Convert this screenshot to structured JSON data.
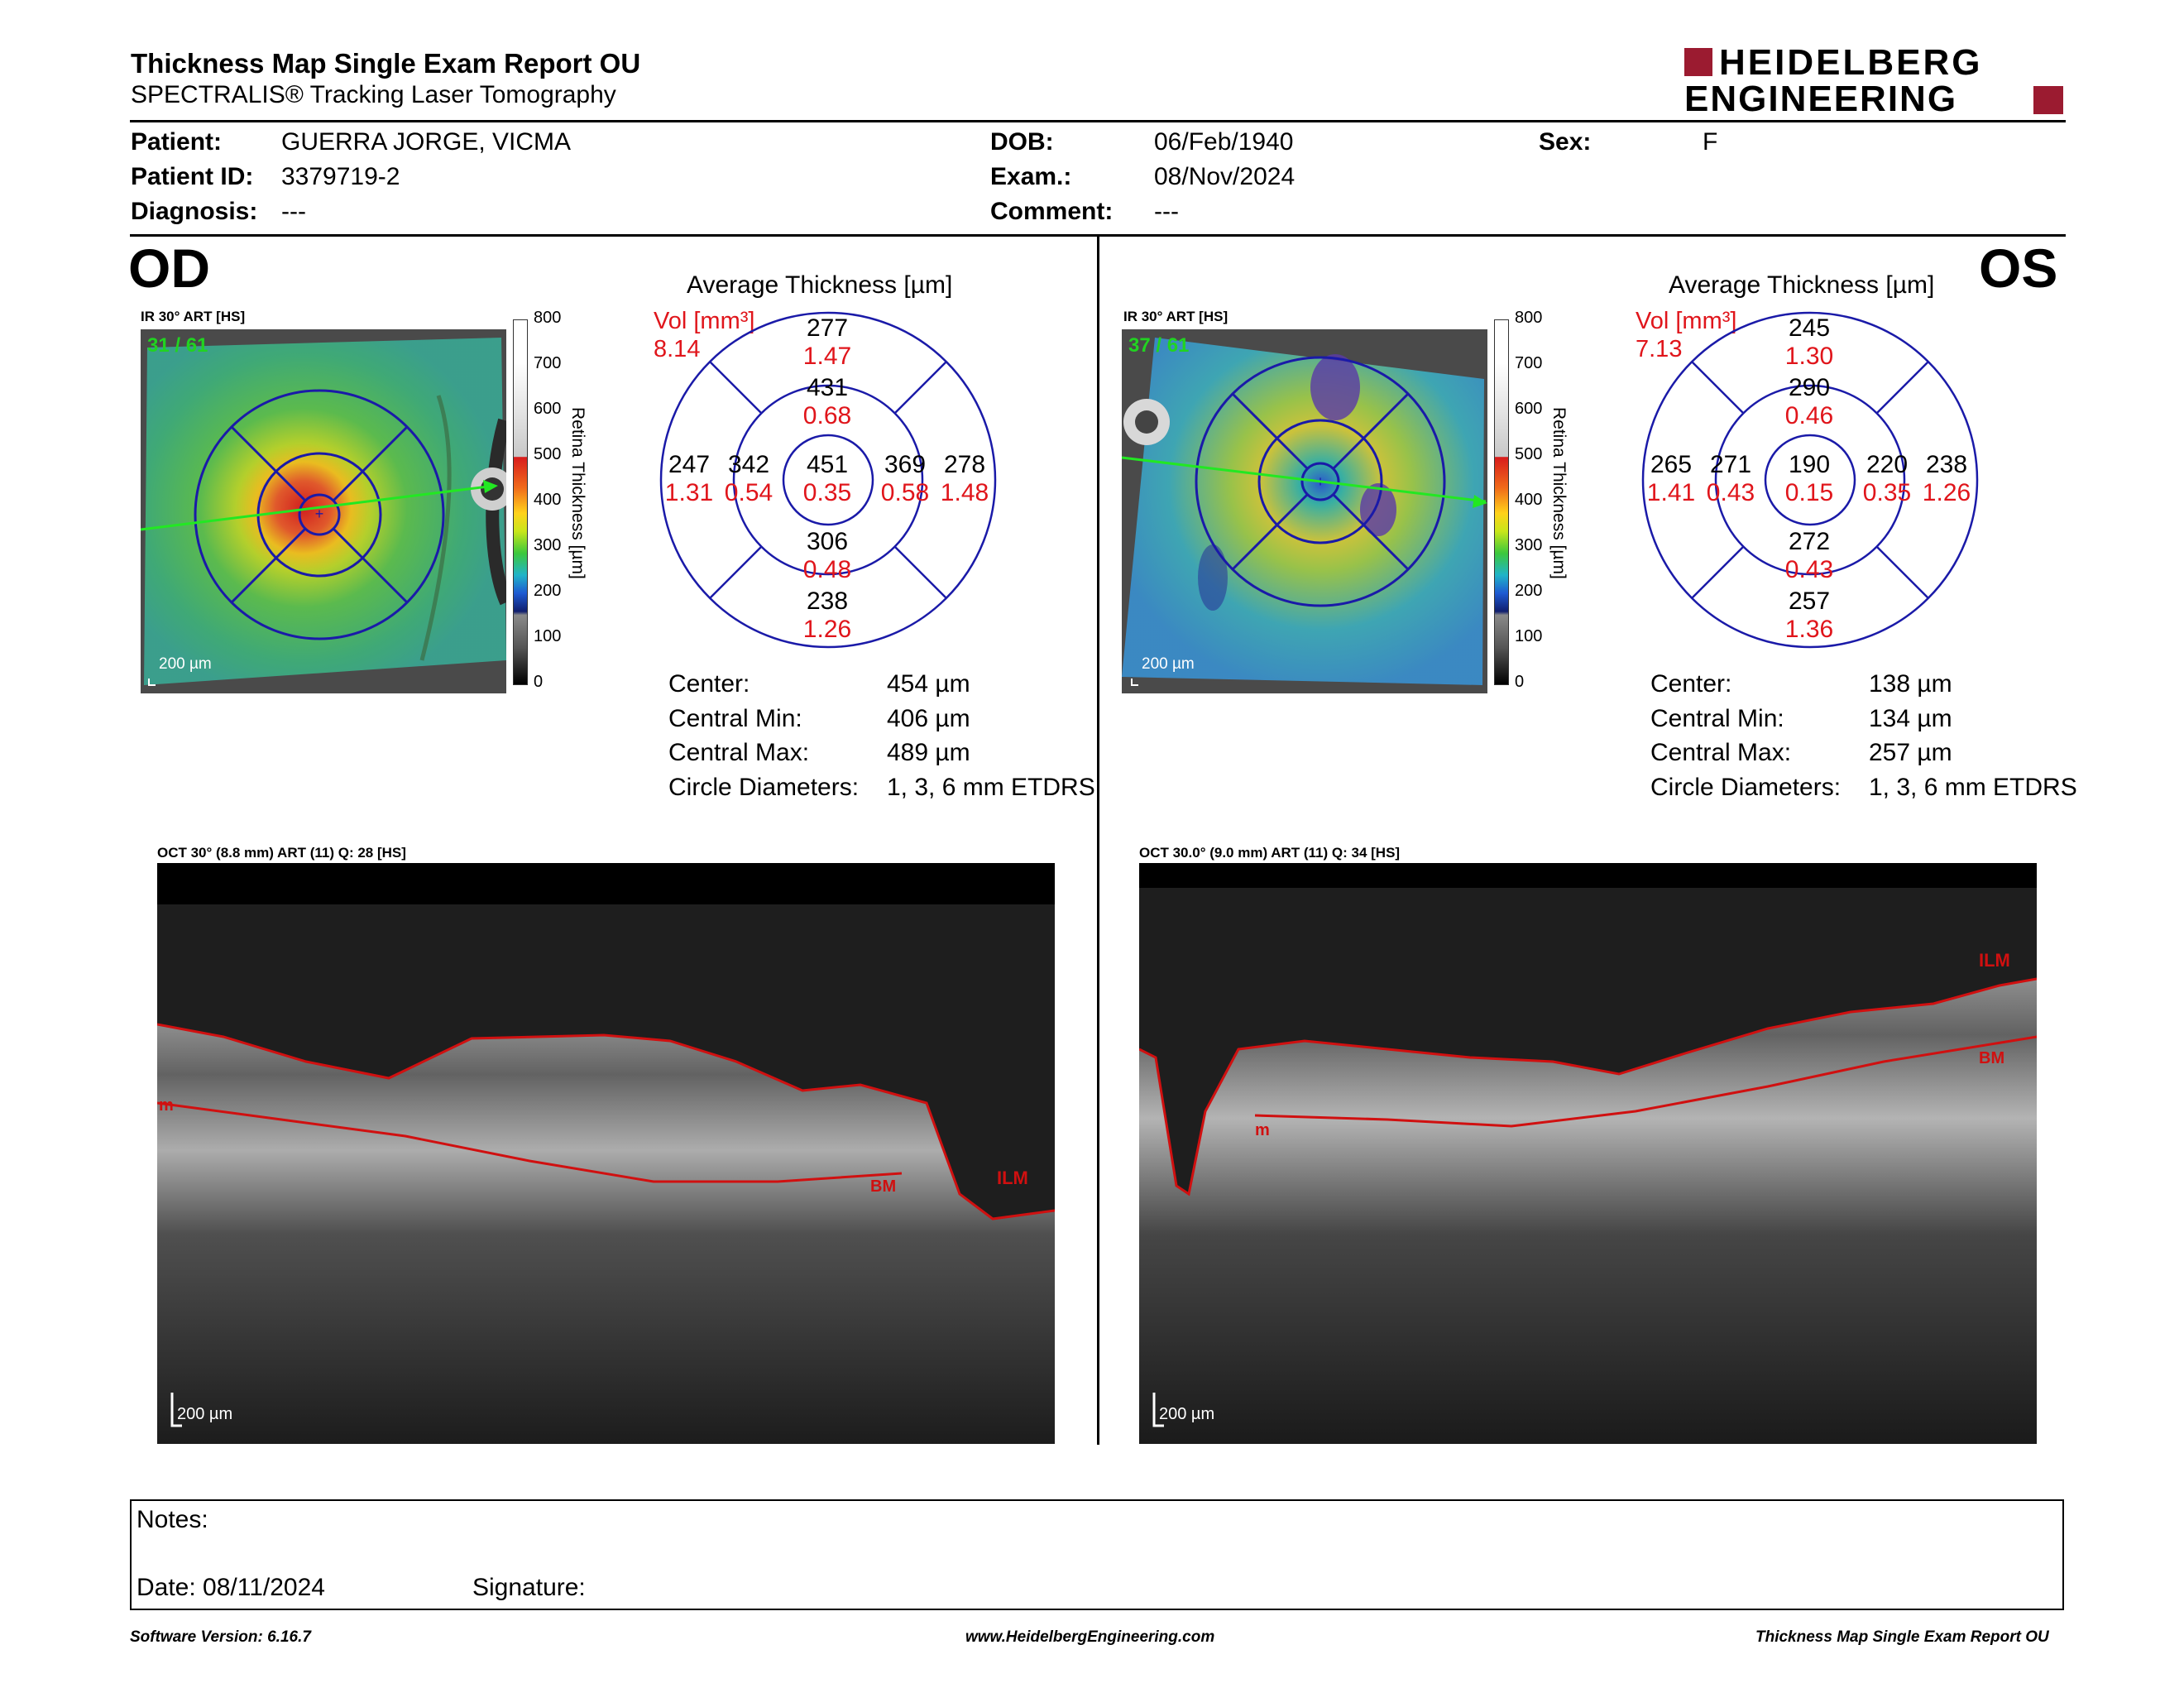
{
  "header": {
    "title": "Thickness Map Single Exam Report OU",
    "subtitle": "SPECTRALIS® Tracking Laser Tomography",
    "logo_line1": "HEIDELBERG",
    "logo_line2": "ENGINEERING",
    "logo_color": "#9b1b30"
  },
  "patient": {
    "patient_label": "Patient:",
    "patient_value": "GUERRA JORGE, VICMA",
    "id_label": "Patient ID:",
    "id_value": "3379719-2",
    "diagnosis_label": "Diagnosis:",
    "diagnosis_value": "---",
    "dob_label": "DOB:",
    "dob_value": "06/Feb/1940",
    "exam_label": "Exam.:",
    "exam_value": "08/Nov/2024",
    "comment_label": "Comment:",
    "comment_value": "---",
    "sex_label": "Sex:",
    "sex_value": "F"
  },
  "colorbar": {
    "title": "Retina Thickness [µm]",
    "ticks": [
      "800",
      "700",
      "600",
      "500",
      "400",
      "300",
      "200",
      "100",
      "0"
    ]
  },
  "od": {
    "eye": "OD",
    "map_label": "IR 30° ART [HS]",
    "frame": "31 / 61",
    "scale": "200 µm",
    "avg_title": "Average Thickness [µm]",
    "vol_label": "Vol [mm³]",
    "vol_total": "8.14",
    "sectors": {
      "center": {
        "t": "451",
        "v": "0.35"
      },
      "inner_sup": {
        "t": "431",
        "v": "0.68"
      },
      "inner_inf": {
        "t": "306",
        "v": "0.48"
      },
      "inner_left": {
        "t": "342",
        "v": "0.54"
      },
      "inner_right": {
        "t": "369",
        "v": "0.58"
      },
      "outer_sup": {
        "t": "277",
        "v": "1.47"
      },
      "outer_inf": {
        "t": "238",
        "v": "1.26"
      },
      "outer_left": {
        "t": "247",
        "v": "1.31"
      },
      "outer_right": {
        "t": "278",
        "v": "1.48"
      }
    },
    "stats": {
      "center_label": "Center:",
      "center_value": "454 µm",
      "min_label": "Central Min:",
      "min_value": "406 µm",
      "max_label": "Central Max:",
      "max_value": "489 µm",
      "diam_label": "Circle Diameters:",
      "diam_value": "1, 3, 6 mm ETDRS"
    },
    "oct_label": "OCT 30° (8.8 mm) ART (11) Q: 28 [HS]",
    "oct_scale": "200 µm",
    "oct_tags": {
      "left": "m",
      "bm": "BM",
      "ilm": "ILM"
    }
  },
  "os": {
    "eye": "OS",
    "map_label": "IR 30° ART [HS]",
    "frame": "37 / 61",
    "scale": "200 µm",
    "avg_title": "Average Thickness [µm]",
    "vol_label": "Vol [mm³]",
    "vol_total": "7.13",
    "sectors": {
      "center": {
        "t": "190",
        "v": "0.15"
      },
      "inner_sup": {
        "t": "290",
        "v": "0.46"
      },
      "inner_inf": {
        "t": "272",
        "v": "0.43"
      },
      "inner_left": {
        "t": "271",
        "v": "0.43"
      },
      "inner_right": {
        "t": "220",
        "v": "0.35"
      },
      "outer_sup": {
        "t": "245",
        "v": "1.30"
      },
      "outer_inf": {
        "t": "257",
        "v": "1.36"
      },
      "outer_left": {
        "t": "265",
        "v": "1.41"
      },
      "outer_right": {
        "t": "238",
        "v": "1.26"
      }
    },
    "stats": {
      "center_label": "Center:",
      "center_value": "138 µm",
      "min_label": "Central Min:",
      "min_value": "134 µm",
      "max_label": "Central Max:",
      "max_value": "257 µm",
      "diam_label": "Circle Diameters:",
      "diam_value": "1, 3, 6 mm ETDRS"
    },
    "oct_label": "OCT 30.0° (9.0 mm) ART (11) Q: 34 [HS]",
    "oct_scale": "200 µm",
    "oct_tags": {
      "left": "m",
      "bm": "BM",
      "ilm": "ILM"
    }
  },
  "notes": {
    "notes_label": "Notes:",
    "date_label": "Date: 08/11/2024",
    "signature_label": "Signature:"
  },
  "footer": {
    "software": "Software Version: 6.16.7",
    "website": "www.HeidelbergEngineering.com",
    "report": "Thickness Map Single Exam Report OU"
  },
  "colors": {
    "grid_blue": "#1a1aa8",
    "vol_red": "#e0151b",
    "frame_green": "#21d321",
    "scan_line_green": "#22e822",
    "layer_red": "#d01010"
  }
}
